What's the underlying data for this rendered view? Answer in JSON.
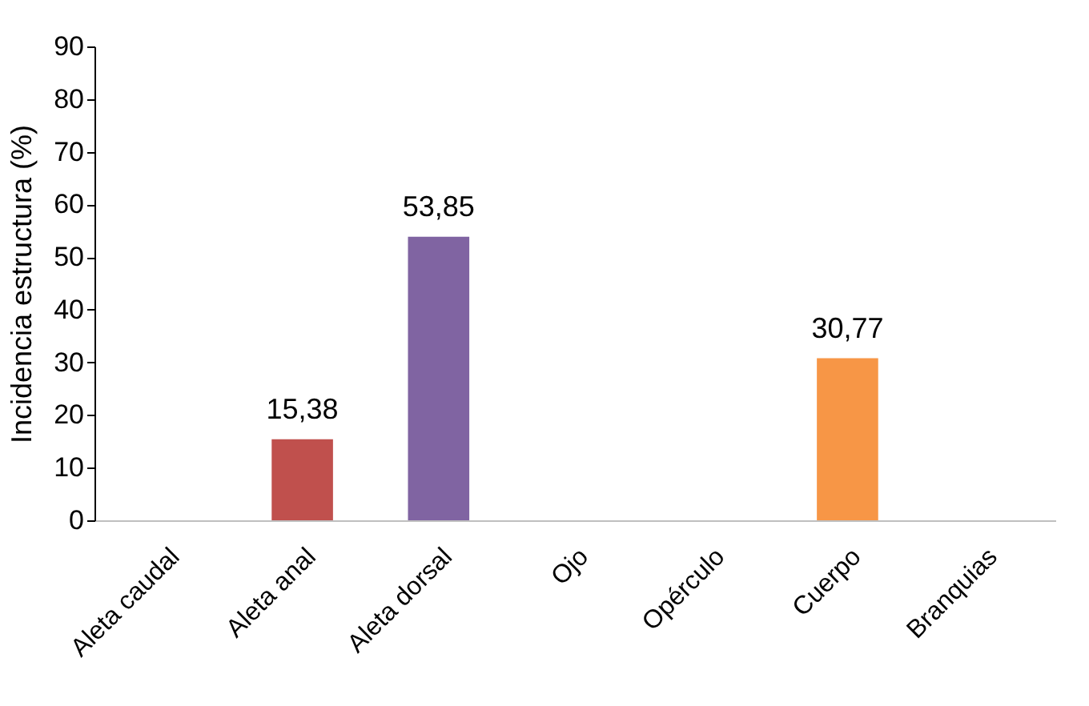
{
  "chart_data": {
    "type": "bar",
    "ylabel": "Incidencia estructura (%)",
    "categories": [
      "Aleta caudal",
      "Aleta anal",
      "Aleta dorsal",
      "Ojo",
      "Opérculo",
      "Cuerpo",
      "Branquias"
    ],
    "values": [
      0,
      15.38,
      53.85,
      0,
      0,
      30.77,
      0
    ],
    "colors": [
      "#4f81bd",
      "#c0504d",
      "#8064a2",
      "#9bbb59",
      "#4bacc6",
      "#f79646",
      "#2c4d75"
    ],
    "value_labels": [
      null,
      "15,38",
      "53,85",
      null,
      null,
      "30,77",
      null
    ],
    "ylim": [
      0,
      90
    ],
    "yticks": [
      0,
      10,
      20,
      30,
      40,
      50,
      60,
      70,
      80,
      90
    ],
    "grid": false
  }
}
